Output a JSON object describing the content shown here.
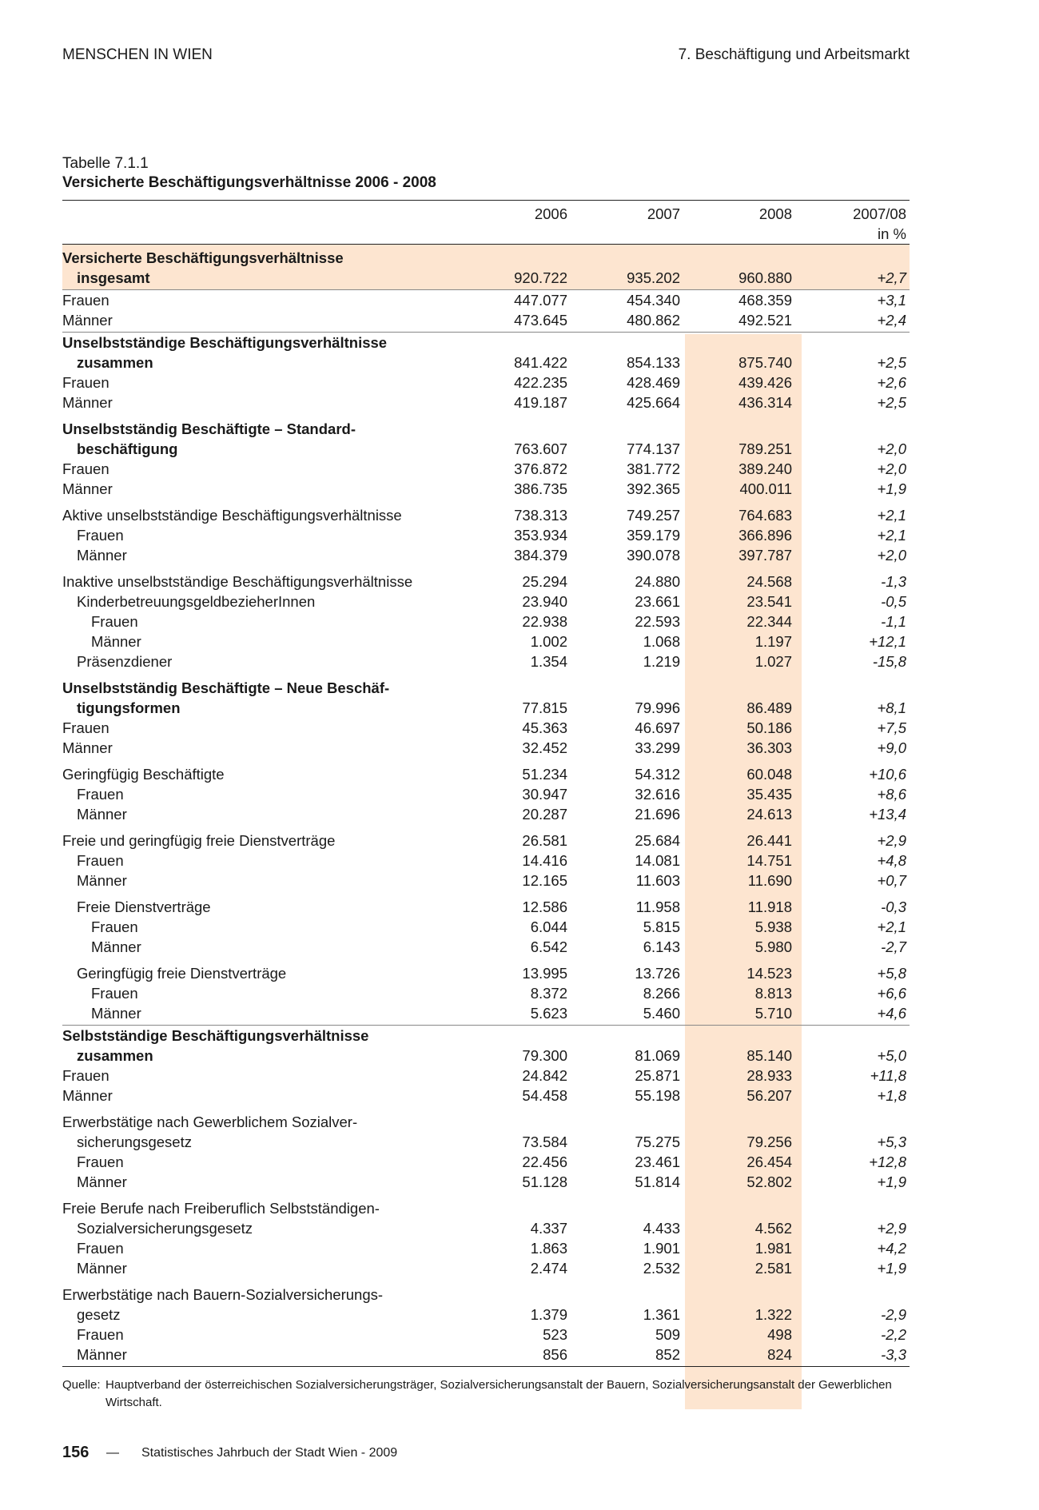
{
  "header": {
    "left": "MENSCHEN IN WIEN",
    "right": "7. Beschäftigung und Arbeitsmarkt"
  },
  "caption": {
    "number": "Tabelle 7.1.1",
    "title": "Versicherte Beschäftigungsverhältnisse 2006 - 2008"
  },
  "colors": {
    "highlight": "#fde5d0"
  },
  "columns": [
    "2006",
    "2007",
    "2008",
    "2007/08",
    "in %"
  ],
  "groups": [
    {
      "highlight": true,
      "rule": "gray",
      "rows": [
        {
          "label": "Versicherte Beschäftigungsverhältnisse",
          "indent": 0,
          "bold": true,
          "values": []
        },
        {
          "label": "insgesamt",
          "indent": 1,
          "bold": true,
          "values": [
            "920.722",
            "935.202",
            "960.880",
            "+2,7"
          ]
        }
      ]
    },
    {
      "rule": "gray",
      "first": true,
      "rows": [
        {
          "label": "Frauen",
          "indent": 0,
          "values": [
            "447.077",
            "454.340",
            "468.359",
            "+3,1"
          ]
        },
        {
          "label": "Männer",
          "indent": 0,
          "values": [
            "473.645",
            "480.862",
            "492.521",
            "+2,4"
          ]
        }
      ]
    },
    {
      "first": true,
      "rows": [
        {
          "label": "Unselbstständige Beschäftigungsverhältnisse",
          "indent": 0,
          "bold": true,
          "values": []
        },
        {
          "label": "zusammen",
          "indent": 1,
          "bold": true,
          "values": [
            "841.422",
            "854.133",
            "875.740",
            "+2,5"
          ]
        },
        {
          "label": "Frauen",
          "indent": 0,
          "values": [
            "422.235",
            "428.469",
            "439.426",
            "+2,6"
          ]
        },
        {
          "label": "Männer",
          "indent": 0,
          "values": [
            "419.187",
            "425.664",
            "436.314",
            "+2,5"
          ]
        }
      ]
    },
    {
      "rows": [
        {
          "label": "Unselbstständig Beschäftigte – Standard-",
          "indent": 0,
          "bold": true,
          "values": []
        },
        {
          "label": "beschäftigung",
          "indent": 1,
          "bold": true,
          "values": [
            "763.607",
            "774.137",
            "789.251",
            "+2,0"
          ]
        },
        {
          "label": "Frauen",
          "indent": 0,
          "values": [
            "376.872",
            "381.772",
            "389.240",
            "+2,0"
          ]
        },
        {
          "label": "Männer",
          "indent": 0,
          "values": [
            "386.735",
            "392.365",
            "400.011",
            "+1,9"
          ]
        }
      ]
    },
    {
      "rows": [
        {
          "label": "Aktive unselbstständige Beschäftigungsverhältnisse",
          "indent": 0,
          "values": [
            "738.313",
            "749.257",
            "764.683",
            "+2,1"
          ]
        },
        {
          "label": "Frauen",
          "indent": 1,
          "values": [
            "353.934",
            "359.179",
            "366.896",
            "+2,1"
          ]
        },
        {
          "label": "Männer",
          "indent": 1,
          "values": [
            "384.379",
            "390.078",
            "397.787",
            "+2,0"
          ]
        }
      ]
    },
    {
      "rows": [
        {
          "label": "Inaktive unselbstständige Beschäftigungsverhältnisse",
          "indent": 0,
          "values": [
            "25.294",
            "24.880",
            "24.568",
            "-1,3"
          ]
        },
        {
          "label": "KinderbetreuungsgeldbezieherInnen",
          "indent": 1,
          "values": [
            "23.940",
            "23.661",
            "23.541",
            "-0,5"
          ]
        },
        {
          "label": "Frauen",
          "indent": 2,
          "values": [
            "22.938",
            "22.593",
            "22.344",
            "-1,1"
          ]
        },
        {
          "label": "Männer",
          "indent": 2,
          "values": [
            "1.002",
            "1.068",
            "1.197",
            "+12,1"
          ]
        },
        {
          "label": "Präsenzdiener",
          "indent": 1,
          "values": [
            "1.354",
            "1.219",
            "1.027",
            "-15,8"
          ]
        }
      ]
    },
    {
      "rows": [
        {
          "label": "Unselbstständig Beschäftigte – Neue Beschäf-",
          "indent": 0,
          "bold": true,
          "values": []
        },
        {
          "label": "tigungsformen",
          "indent": 1,
          "bold": true,
          "values": [
            "77.815",
            "79.996",
            "86.489",
            "+8,1"
          ]
        },
        {
          "label": "Frauen",
          "indent": 0,
          "values": [
            "45.363",
            "46.697",
            "50.186",
            "+7,5"
          ]
        },
        {
          "label": "Männer",
          "indent": 0,
          "values": [
            "32.452",
            "33.299",
            "36.303",
            "+9,0"
          ]
        }
      ]
    },
    {
      "rows": [
        {
          "label": "Geringfügig Beschäftigte",
          "indent": 0,
          "values": [
            "51.234",
            "54.312",
            "60.048",
            "+10,6"
          ]
        },
        {
          "label": "Frauen",
          "indent": 1,
          "values": [
            "30.947",
            "32.616",
            "35.435",
            "+8,6"
          ]
        },
        {
          "label": "Männer",
          "indent": 1,
          "values": [
            "20.287",
            "21.696",
            "24.613",
            "+13,4"
          ]
        }
      ]
    },
    {
      "rows": [
        {
          "label": "Freie und geringfügig freie Dienstverträge",
          "indent": 0,
          "values": [
            "26.581",
            "25.684",
            "26.441",
            "+2,9"
          ]
        },
        {
          "label": "Frauen",
          "indent": 1,
          "values": [
            "14.416",
            "14.081",
            "14.751",
            "+4,8"
          ]
        },
        {
          "label": "Männer",
          "indent": 1,
          "values": [
            "12.165",
            "11.603",
            "11.690",
            "+0,7"
          ]
        }
      ]
    },
    {
      "rows": [
        {
          "label": "Freie Dienstverträge",
          "indent": 1,
          "values": [
            "12.586",
            "11.958",
            "11.918",
            "-0,3"
          ]
        },
        {
          "label": "Frauen",
          "indent": 2,
          "values": [
            "6.044",
            "5.815",
            "5.938",
            "+2,1"
          ]
        },
        {
          "label": "Männer",
          "indent": 2,
          "values": [
            "6.542",
            "6.143",
            "5.980",
            "-2,7"
          ]
        }
      ]
    },
    {
      "rule": "gray",
      "rows": [
        {
          "label": "Geringfügig freie Dienstverträge",
          "indent": 1,
          "values": [
            "13.995",
            "13.726",
            "14.523",
            "+5,8"
          ]
        },
        {
          "label": "Frauen",
          "indent": 2,
          "values": [
            "8.372",
            "8.266",
            "8.813",
            "+6,6"
          ]
        },
        {
          "label": "Männer",
          "indent": 2,
          "values": [
            "5.623",
            "5.460",
            "5.710",
            "+4,6"
          ]
        }
      ]
    },
    {
      "first": true,
      "rows": [
        {
          "label": "Selbstständige Beschäftigungsverhältnisse",
          "indent": 0,
          "bold": true,
          "values": []
        },
        {
          "label": "zusammen",
          "indent": 1,
          "bold": true,
          "values": [
            "79.300",
            "81.069",
            "85.140",
            "+5,0"
          ]
        },
        {
          "label": "Frauen",
          "indent": 0,
          "values": [
            "24.842",
            "25.871",
            "28.933",
            "+11,8"
          ]
        },
        {
          "label": "Männer",
          "indent": 0,
          "values": [
            "54.458",
            "55.198",
            "56.207",
            "+1,8"
          ]
        }
      ]
    },
    {
      "rows": [
        {
          "label": "Erwerbstätige nach Gewerblichem Sozialver-",
          "indent": 0,
          "values": []
        },
        {
          "label": "sicherungsgesetz",
          "indent": 1,
          "values": [
            "73.584",
            "75.275",
            "79.256",
            "+5,3"
          ]
        },
        {
          "label": "Frauen",
          "indent": 1,
          "values": [
            "22.456",
            "23.461",
            "26.454",
            "+12,8"
          ]
        },
        {
          "label": "Männer",
          "indent": 1,
          "values": [
            "51.128",
            "51.814",
            "52.802",
            "+1,9"
          ]
        }
      ]
    },
    {
      "rows": [
        {
          "label": "Freie Berufe nach Freiberuflich Selbstständigen-",
          "indent": 0,
          "values": []
        },
        {
          "label": "Sozialversicherungsgesetz",
          "indent": 1,
          "values": [
            "4.337",
            "4.433",
            "4.562",
            "+2,9"
          ]
        },
        {
          "label": "Frauen",
          "indent": 1,
          "values": [
            "1.863",
            "1.901",
            "1.981",
            "+4,2"
          ]
        },
        {
          "label": "Männer",
          "indent": 1,
          "values": [
            "2.474",
            "2.532",
            "2.581",
            "+1,9"
          ]
        }
      ]
    },
    {
      "rule": "black",
      "rows": [
        {
          "label": "Erwerbstätige nach Bauern-Sozialversicherungs-",
          "indent": 0,
          "values": []
        },
        {
          "label": "gesetz",
          "indent": 1,
          "values": [
            "1.379",
            "1.361",
            "1.322",
            "-2,9"
          ]
        },
        {
          "label": "Frauen",
          "indent": 1,
          "values": [
            "523",
            "509",
            "498",
            "-2,2"
          ]
        },
        {
          "label": "Männer",
          "indent": 1,
          "values": [
            "856",
            "852",
            "824",
            "-3,3"
          ]
        }
      ]
    }
  ],
  "source": {
    "label": "Quelle:",
    "text": "Hauptverband der österreichischen Sozialversicherungsträger, Sozialversicherungsanstalt der Bauern, Sozialversicherungsanstalt der Gewerblichen Wirtschaft."
  },
  "footer": {
    "page": "156",
    "dash": "—",
    "text": "Statistisches Jahrbuch der Stadt Wien - 2009"
  }
}
